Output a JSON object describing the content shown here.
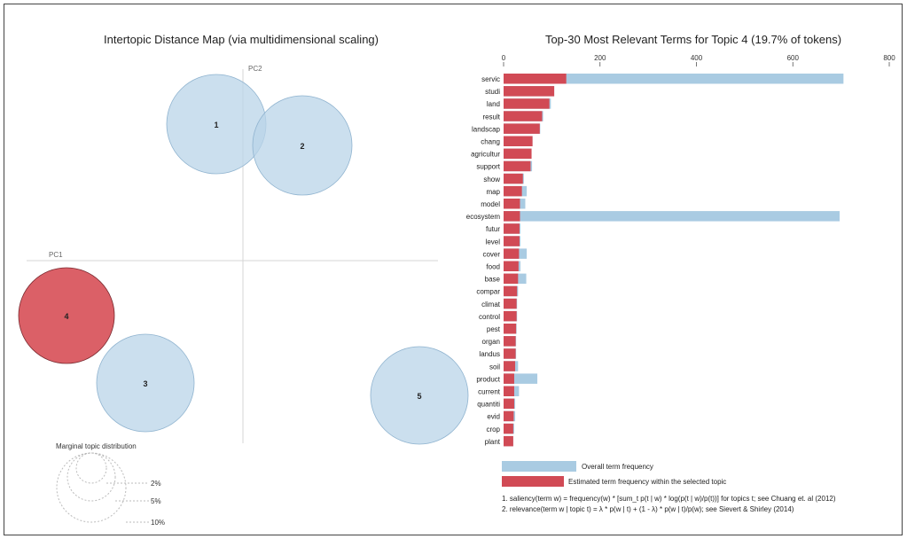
{
  "left_panel": {
    "title": "Intertopic Distance Map (via multidimensional scaling)",
    "pc1": "PC1",
    "pc2": "PC2",
    "marginal_title": "Marginal topic distribution",
    "marginal_labels": [
      "2%",
      "5%",
      "10%"
    ]
  },
  "right_panel": {
    "title": "Top-30 Most Relevant Terms for Topic 4 (19.7% of tokens)",
    "legend_overall": "Overall term frequency",
    "legend_estimated": "Estimated term frequency within the selected topic",
    "note1": "1. saliency(term w) = frequency(w) * [sum_t p(t | w) * log(p(t | w)/p(t))] for topics t; see Chuang et. al (2012)",
    "note2": "2. relevance(term w | topic t) = λ * p(w | t) + (1 - λ) * p(w | t)/p(w); see Sievert & Shirley (2014)"
  },
  "colors": {
    "overall": "#a9cbe2",
    "estimated": "#d14a55",
    "topic_selected": "#d9575f",
    "topic": "#b9d4e8"
  },
  "chart_data": [
    {
      "type": "scatter",
      "title": "Intertopic Distance Map (via multidimensional scaling)",
      "xlabel": "PC1",
      "ylabel": "PC2",
      "selected_topic": 4,
      "topics": [
        {
          "id": 1,
          "label": "1"
        },
        {
          "id": 2,
          "label": "2"
        },
        {
          "id": 3,
          "label": "3"
        },
        {
          "id": 4,
          "label": "4"
        },
        {
          "id": 5,
          "label": "5"
        }
      ]
    },
    {
      "type": "bar",
      "title": "Top-30 Most Relevant Terms for Topic 4 (19.7% of tokens)",
      "orientation": "horizontal",
      "xlim": [
        0,
        800
      ],
      "xticks": [
        0,
        200,
        400,
        600,
        800
      ],
      "categories": [
        "servic",
        "studi",
        "land",
        "result",
        "landscap",
        "chang",
        "agricultur",
        "support",
        "show",
        "map",
        "model",
        "ecosystem",
        "futur",
        "level",
        "cover",
        "food",
        "base",
        "compar",
        "climat",
        "control",
        "pest",
        "organ",
        "landus",
        "soil",
        "product",
        "current",
        "quantiti",
        "evid",
        "crop",
        "plant"
      ],
      "series": [
        {
          "name": "Overall term frequency",
          "values": [
            705,
            105,
            98,
            82,
            76,
            60,
            58,
            59,
            42,
            48,
            45,
            697,
            35,
            35,
            48,
            35,
            47,
            30,
            28,
            28,
            27,
            26,
            26,
            30,
            70,
            32,
            24,
            24,
            22,
            20
          ]
        },
        {
          "name": "Estimated term frequency within the selected topic",
          "values": [
            130,
            105,
            95,
            80,
            75,
            60,
            58,
            56,
            40,
            38,
            34,
            34,
            33,
            33,
            32,
            31,
            30,
            28,
            27,
            27,
            26,
            25,
            25,
            24,
            22,
            22,
            22,
            21,
            20,
            20
          ]
        }
      ]
    }
  ]
}
